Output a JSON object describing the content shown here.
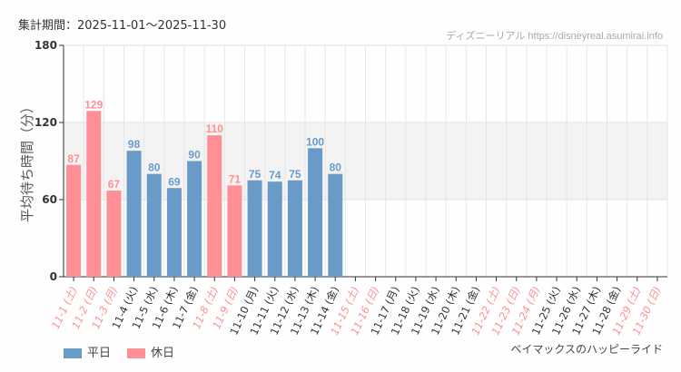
{
  "header": {
    "period": "集計期間：2025-11-01～2025-11-30",
    "credit": "ディズニーリアル https://disneyreal.asumirai.info"
  },
  "footer": {
    "attraction": "ベイマックスのハッピーライド"
  },
  "colors": {
    "weekday": "#6a9bc8",
    "holiday": "#ff8f95",
    "weekday_label": "#333333",
    "holiday_label": "#ff8f95",
    "band": "#f3f3f3"
  },
  "chart_data": {
    "type": "bar",
    "ylabel": "平均待ち時間（分）",
    "ylim": [
      0,
      180
    ],
    "yticks": [
      0,
      60,
      120,
      180
    ],
    "shaded_band": [
      60,
      120
    ],
    "grid": true,
    "legend_position": "bottom-left",
    "categories": [
      "11-1 (土)",
      "11-2 (日)",
      "11-3 (月)",
      "11-4 (火)",
      "11-5 (水)",
      "11-6 (木)",
      "11-7 (金)",
      "11-8 (土)",
      "11-9 (日)",
      "11-10 (月)",
      "11-11 (火)",
      "11-12 (水)",
      "11-13 (木)",
      "11-14 (金)",
      "11-15 (土)",
      "11-16 (日)",
      "11-17 (月)",
      "11-18 (火)",
      "11-19 (水)",
      "11-20 (木)",
      "11-21 (金)",
      "11-22 (土)",
      "11-23 (日)",
      "11-24 (月)",
      "11-25 (火)",
      "11-26 (水)",
      "11-27 (木)",
      "11-28 (金)",
      "11-29 (土)",
      "11-30 (日)"
    ],
    "holiday": [
      true,
      true,
      true,
      false,
      false,
      false,
      false,
      true,
      true,
      false,
      false,
      false,
      false,
      false,
      true,
      true,
      false,
      false,
      false,
      false,
      false,
      true,
      true,
      true,
      false,
      false,
      false,
      false,
      true,
      true
    ],
    "values": [
      87,
      129,
      67,
      98,
      80,
      69,
      90,
      110,
      71,
      75,
      74,
      75,
      100,
      80,
      null,
      null,
      null,
      null,
      null,
      null,
      null,
      null,
      null,
      null,
      null,
      null,
      null,
      null,
      null,
      null
    ],
    "series": [
      {
        "name": "平日"
      },
      {
        "name": "休日"
      }
    ]
  }
}
